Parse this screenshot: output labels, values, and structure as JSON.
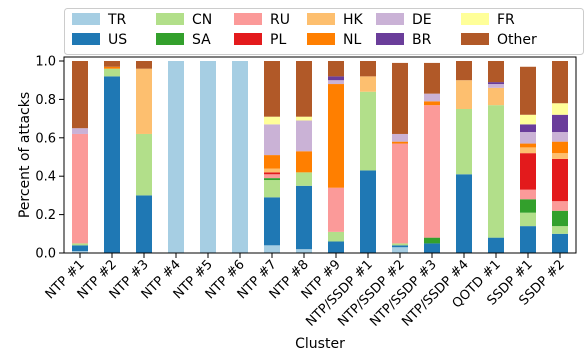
{
  "chart_data": {
    "type": "bar",
    "stacked": true,
    "title": "",
    "xlabel": "Cluster",
    "ylabel": "Percent of attacks",
    "ylim": [
      0,
      1.0
    ],
    "yticks": [
      "0.0",
      "0.2",
      "0.4",
      "0.6",
      "0.8",
      "1.0"
    ],
    "grid": false,
    "legend_position": "top",
    "categories": [
      "NTP #1",
      "NTP #2",
      "NTP #3",
      "NTP #4",
      "NTP #5",
      "NTP #6",
      "NTP #7",
      "NTP #8",
      "NTP #9",
      "NTP/SSDP #1",
      "NTP/SSDP #2",
      "NTP/SSDP #3",
      "NTP/SSDP #4",
      "QOTD #1",
      "SSDP #1",
      "SSDP #2"
    ],
    "series": [
      {
        "name": "TR",
        "color": "#a6cee3",
        "values": [
          0.01,
          0.0,
          0.0,
          1.0,
          1.0,
          1.0,
          0.04,
          0.02,
          0.0,
          0.0,
          0.03,
          0.0,
          0.0,
          0.0,
          0.0,
          0.0
        ]
      },
      {
        "name": "US",
        "color": "#1f78b4",
        "values": [
          0.03,
          0.92,
          0.3,
          0.0,
          0.0,
          0.0,
          0.25,
          0.33,
          0.06,
          0.43,
          0.01,
          0.05,
          0.41,
          0.08,
          0.14,
          0.1
        ]
      },
      {
        "name": "CN",
        "color": "#b2df8a",
        "values": [
          0.01,
          0.04,
          0.32,
          0.0,
          0.0,
          0.0,
          0.09,
          0.07,
          0.05,
          0.41,
          0.01,
          0.0,
          0.34,
          0.69,
          0.07,
          0.04
        ]
      },
      {
        "name": "SA",
        "color": "#33a02c",
        "values": [
          0.0,
          0.0,
          0.0,
          0.0,
          0.0,
          0.0,
          0.01,
          0.0,
          0.0,
          0.0,
          0.0,
          0.03,
          0.0,
          0.0,
          0.07,
          0.08
        ]
      },
      {
        "name": "RU",
        "color": "#fb9a99",
        "values": [
          0.57,
          0.0,
          0.0,
          0.0,
          0.0,
          0.0,
          0.02,
          0.0,
          0.23,
          0.0,
          0.52,
          0.69,
          0.0,
          0.0,
          0.05,
          0.05
        ]
      },
      {
        "name": "PL",
        "color": "#e31a1c",
        "values": [
          0.0,
          0.0,
          0.0,
          0.0,
          0.0,
          0.0,
          0.01,
          0.0,
          0.0,
          0.0,
          0.0,
          0.0,
          0.0,
          0.0,
          0.19,
          0.22
        ]
      },
      {
        "name": "HK",
        "color": "#fdbf6f",
        "values": [
          0.0,
          0.0,
          0.34,
          0.0,
          0.0,
          0.0,
          0.02,
          0.0,
          0.0,
          0.08,
          0.0,
          0.0,
          0.15,
          0.09,
          0.03,
          0.03
        ]
      },
      {
        "name": "NL",
        "color": "#ff7f00",
        "values": [
          0.0,
          0.01,
          0.0,
          0.0,
          0.0,
          0.0,
          0.07,
          0.11,
          0.54,
          0.0,
          0.01,
          0.02,
          0.0,
          0.0,
          0.02,
          0.06
        ]
      },
      {
        "name": "DE",
        "color": "#cab2d6",
        "values": [
          0.03,
          0.0,
          0.0,
          0.0,
          0.0,
          0.0,
          0.16,
          0.16,
          0.02,
          0.0,
          0.04,
          0.04,
          0.0,
          0.02,
          0.06,
          0.05
        ]
      },
      {
        "name": "BR",
        "color": "#6a3d9a",
        "values": [
          0.0,
          0.0,
          0.0,
          0.0,
          0.0,
          0.0,
          0.0,
          0.0,
          0.02,
          0.0,
          0.0,
          0.0,
          0.0,
          0.01,
          0.04,
          0.09
        ]
      },
      {
        "name": "FR",
        "color": "#ffff99",
        "values": [
          0.0,
          0.0,
          0.0,
          0.0,
          0.0,
          0.0,
          0.04,
          0.02,
          0.0,
          0.0,
          0.0,
          0.0,
          0.0,
          0.0,
          0.05,
          0.06
        ]
      },
      {
        "name": "Other",
        "color": "#b15928",
        "values": [
          0.35,
          0.03,
          0.04,
          0.0,
          0.0,
          0.0,
          0.29,
          0.29,
          0.08,
          0.08,
          0.37,
          0.16,
          0.1,
          0.11,
          0.25,
          0.22
        ]
      }
    ]
  }
}
